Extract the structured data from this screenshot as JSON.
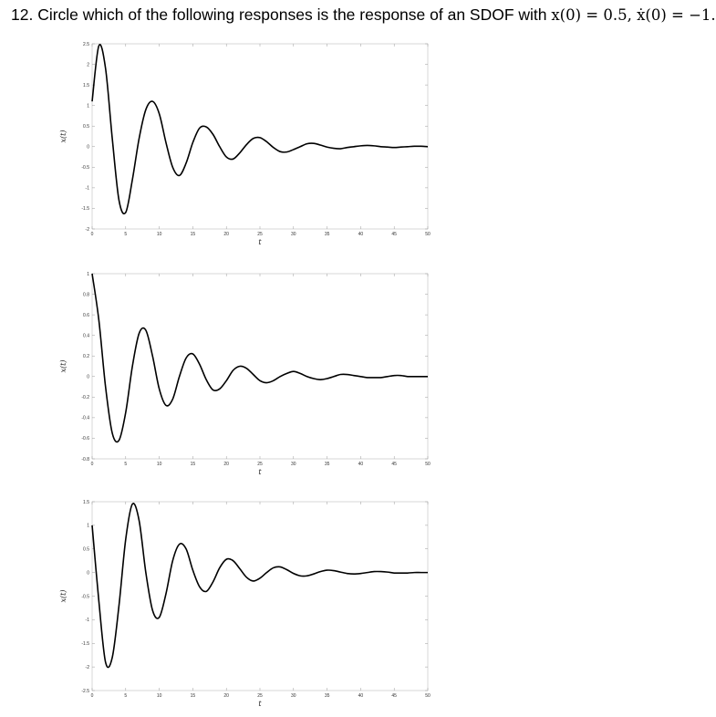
{
  "question": {
    "prefix": "12. Circle which of the following responses is the response of an SDOF with ",
    "cond1": "x(0) = 0.5, ",
    "cond2": "ẋ(0) = −1."
  },
  "chart_data": [
    {
      "type": "line",
      "xlabel": "t",
      "ylabel": "x(t)",
      "xlim": [
        0,
        50
      ],
      "ylim": [
        -2,
        2.5
      ],
      "xticks": [
        "0",
        "5",
        "10",
        "15",
        "20",
        "25",
        "30",
        "35",
        "40",
        "45",
        "50"
      ],
      "yticks": [
        "2.5",
        "2",
        "1.5",
        "1",
        "0.5",
        "0",
        "-0.5",
        "-1",
        "-1.5",
        "-2"
      ],
      "ytick_values": [
        2.5,
        2,
        1.5,
        1,
        0.5,
        0,
        -0.5,
        -1,
        -1.5,
        -2
      ],
      "grid": false,
      "series": [
        {
          "x": [
            0,
            1,
            2,
            3,
            4,
            5,
            6,
            7,
            8,
            9,
            10,
            11,
            12,
            13,
            14,
            15,
            16,
            17,
            18,
            19,
            20,
            21,
            22,
            23,
            24,
            25,
            26,
            27,
            28,
            29,
            30,
            31,
            32,
            33,
            34,
            35,
            36,
            37,
            38,
            39,
            40,
            41,
            42,
            43,
            44,
            45,
            46,
            47,
            48,
            49,
            50
          ],
          "values": [
            1.1,
            2.45,
            1.9,
            0.2,
            -1.3,
            -1.6,
            -0.8,
            0.2,
            0.9,
            1.1,
            0.8,
            0.1,
            -0.5,
            -0.7,
            -0.4,
            0.1,
            0.45,
            0.48,
            0.3,
            0.0,
            -0.25,
            -0.3,
            -0.15,
            0.05,
            0.2,
            0.22,
            0.12,
            -0.02,
            -0.12,
            -0.13,
            -0.07,
            0.0,
            0.07,
            0.08,
            0.04,
            -0.01,
            -0.04,
            -0.05,
            -0.02,
            0.0,
            0.02,
            0.03,
            0.02,
            0.0,
            -0.01,
            -0.02,
            -0.01,
            0.0,
            0.01,
            0.01,
            0.0
          ]
        }
      ]
    },
    {
      "type": "line",
      "xlabel": "t",
      "ylabel": "x(t)",
      "xlim": [
        0,
        50
      ],
      "ylim": [
        -0.8,
        1
      ],
      "xticks": [
        "0",
        "5",
        "10",
        "15",
        "20",
        "25",
        "30",
        "35",
        "40",
        "45",
        "50"
      ],
      "yticks": [
        "1",
        "0.8",
        "0.6",
        "0.4",
        "0.2",
        "0",
        "-0.2",
        "-0.4",
        "-0.6",
        "-0.8"
      ],
      "ytick_values": [
        1,
        0.8,
        0.6,
        0.4,
        0.2,
        0,
        -0.2,
        -0.4,
        -0.6,
        -0.8
      ],
      "grid": false,
      "series": [
        {
          "x": [
            0,
            1,
            2,
            3,
            4,
            5,
            6,
            7,
            8,
            9,
            10,
            11,
            12,
            13,
            14,
            15,
            16,
            17,
            18,
            19,
            20,
            21,
            22,
            23,
            24,
            25,
            26,
            27,
            28,
            29,
            30,
            31,
            32,
            33,
            34,
            35,
            36,
            37,
            38,
            39,
            40,
            41,
            42,
            43,
            44,
            45,
            46,
            47,
            48,
            49,
            50
          ],
          "values": [
            1.0,
            0.55,
            -0.1,
            -0.55,
            -0.62,
            -0.35,
            0.1,
            0.42,
            0.45,
            0.2,
            -0.12,
            -0.28,
            -0.22,
            0.0,
            0.18,
            0.22,
            0.12,
            -0.03,
            -0.13,
            -0.12,
            -0.04,
            0.06,
            0.1,
            0.08,
            0.02,
            -0.04,
            -0.06,
            -0.04,
            0.0,
            0.03,
            0.05,
            0.03,
            0.0,
            -0.02,
            -0.03,
            -0.02,
            0.0,
            0.02,
            0.02,
            0.01,
            0.0,
            -0.01,
            -0.01,
            -0.01,
            0.0,
            0.01,
            0.01,
            0.0,
            0.0,
            0.0,
            0.0
          ]
        }
      ]
    },
    {
      "type": "line",
      "xlabel": "t",
      "ylabel": "x(t)",
      "xlim": [
        0,
        50
      ],
      "ylim": [
        -2.5,
        1.5
      ],
      "xticks": [
        "0",
        "5",
        "10",
        "15",
        "20",
        "25",
        "30",
        "35",
        "40",
        "45",
        "50"
      ],
      "yticks": [
        "1.5",
        "1",
        "0.5",
        "0",
        "-0.5",
        "-1",
        "-1.5",
        "-2",
        "-2.5"
      ],
      "ytick_values": [
        1.5,
        1,
        0.5,
        0,
        -0.5,
        -1,
        -1.5,
        -2,
        -2.5
      ],
      "grid": false,
      "series": [
        {
          "x": [
            0,
            1,
            2,
            3,
            4,
            5,
            6,
            7,
            8,
            9,
            10,
            11,
            12,
            13,
            14,
            15,
            16,
            17,
            18,
            19,
            20,
            21,
            22,
            23,
            24,
            25,
            26,
            27,
            28,
            29,
            30,
            31,
            32,
            33,
            34,
            35,
            36,
            37,
            38,
            39,
            40,
            41,
            42,
            43,
            44,
            45,
            46,
            47,
            48,
            49,
            50
          ],
          "values": [
            1.0,
            -0.6,
            -1.9,
            -1.8,
            -0.7,
            0.7,
            1.45,
            1.1,
            0.0,
            -0.8,
            -0.95,
            -0.45,
            0.25,
            0.6,
            0.5,
            0.05,
            -0.3,
            -0.4,
            -0.2,
            0.1,
            0.28,
            0.25,
            0.08,
            -0.1,
            -0.18,
            -0.12,
            0.0,
            0.1,
            0.12,
            0.06,
            -0.02,
            -0.07,
            -0.07,
            -0.03,
            0.02,
            0.05,
            0.04,
            0.01,
            -0.02,
            -0.03,
            -0.02,
            0.0,
            0.02,
            0.02,
            0.01,
            -0.01,
            -0.01,
            -0.01,
            0.0,
            0.0,
            0.0
          ]
        }
      ]
    }
  ]
}
